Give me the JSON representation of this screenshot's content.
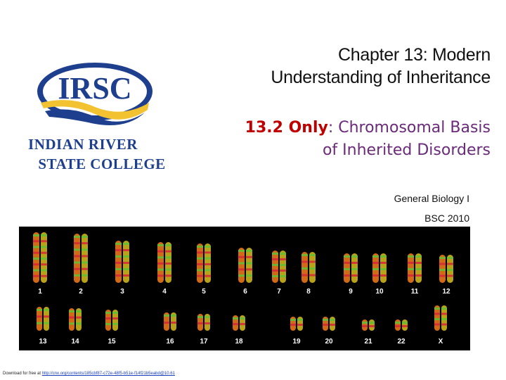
{
  "logo": {
    "letters": "IRSC",
    "name_line1": "INDIAN RIVER",
    "name_line2": "STATE COLLEGE",
    "colors": {
      "blue": "#1e3f8e",
      "gold": "#f2c230"
    }
  },
  "title": {
    "line1": "Chapter 13: Modern",
    "line2": "Understanding of Inheritance"
  },
  "subtitle": {
    "lead": "13.2 Only",
    "rest_line1": ": Chromosomal Basis",
    "line2": "of Inherited Disorders"
  },
  "course": {
    "name": "General Biology I",
    "code": "BSC 2010"
  },
  "karyotype": {
    "row1_labels": [
      "1",
      "2",
      "3",
      "4",
      "5",
      "6",
      "7",
      "8",
      "9",
      "10",
      "11",
      "12"
    ],
    "row2_labels": [
      "13",
      "14",
      "15",
      "16",
      "17",
      "18",
      "19",
      "20",
      "21",
      "22",
      "X"
    ]
  },
  "credit": {
    "prefix": "Download for free at ",
    "link": "http://cnx.org/contents/185cbf87-c72e-48f5-b51e-f14f21b5eabd@10.61"
  }
}
